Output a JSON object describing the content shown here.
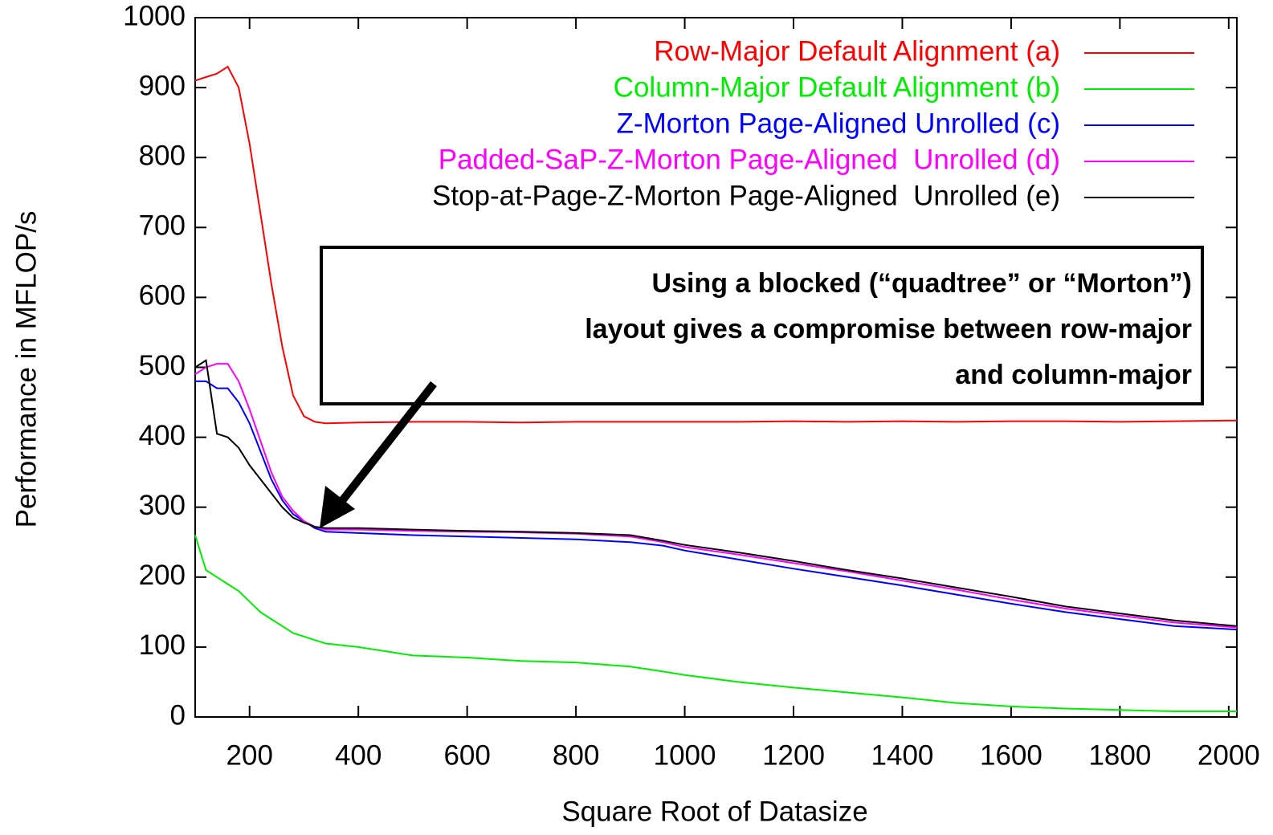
{
  "chart_data": {
    "type": "line",
    "xlabel": "Square Root of Datasize",
    "ylabel": "Performance in MFLOP/s",
    "annotation": [
      "Using a blocked (“quadtree” or “Morton”)",
      "layout gives a compromise between row-major",
      "and column-major"
    ],
    "x": [
      100,
      120,
      140,
      160,
      180,
      200,
      220,
      240,
      260,
      280,
      300,
      320,
      340,
      400,
      500,
      600,
      700,
      800,
      900,
      960,
      1000,
      1100,
      1200,
      1300,
      1400,
      1500,
      1600,
      1700,
      1800,
      1900,
      2015
    ],
    "series": [
      {
        "name": "Row-Major Default Alignment (a)",
        "color": "#ff0000",
        "values": [
          910,
          915,
          920,
          930,
          900,
          820,
          720,
          620,
          530,
          460,
          430,
          422,
          420,
          421,
          422,
          422,
          421,
          422,
          422,
          422,
          422,
          422,
          423,
          422,
          423,
          422,
          423,
          423,
          422,
          423,
          424
        ]
      },
      {
        "name": "Column-Major Default Alignment (b)",
        "color": "#00ee00",
        "values": [
          260,
          210,
          200,
          190,
          180,
          165,
          150,
          140,
          130,
          120,
          115,
          110,
          105,
          100,
          88,
          85,
          80,
          78,
          72,
          65,
          60,
          50,
          42,
          35,
          28,
          20,
          15,
          12,
          10,
          8,
          8
        ]
      },
      {
        "name": "Z-Morton Page-Aligned Unrolled (c)",
        "color": "#0000ff",
        "values": [
          480,
          480,
          470,
          470,
          450,
          420,
          380,
          340,
          310,
          290,
          280,
          270,
          265,
          263,
          260,
          258,
          256,
          254,
          250,
          245,
          238,
          225,
          212,
          200,
          188,
          175,
          162,
          150,
          140,
          130,
          125
        ]
      },
      {
        "name": "Padded-SaP-Z-Morton Page-Aligned  Unrolled (d)",
        "color": "#ff00ff",
        "values": [
          490,
          500,
          505,
          505,
          480,
          440,
          395,
          350,
          315,
          295,
          280,
          272,
          268,
          268,
          266,
          265,
          264,
          262,
          258,
          250,
          243,
          232,
          220,
          208,
          195,
          182,
          168,
          155,
          145,
          135,
          128
        ]
      },
      {
        "name": "Stop-at-Page-Z-Morton Page-Aligned  Unrolled (e)",
        "color": "#000000",
        "values": [
          500,
          510,
          405,
          400,
          385,
          360,
          340,
          320,
          300,
          285,
          278,
          272,
          270,
          270,
          268,
          266,
          265,
          263,
          260,
          252,
          246,
          235,
          223,
          210,
          198,
          185,
          172,
          158,
          148,
          138,
          130
        ]
      }
    ],
    "xlim": [
      100,
      2015
    ],
    "xticks": [
      200,
      400,
      600,
      800,
      1000,
      1200,
      1400,
      1600,
      1800,
      2000
    ],
    "ylim": [
      0,
      1000
    ],
    "yticks": [
      0,
      100,
      200,
      300,
      400,
      500,
      600,
      700,
      800,
      900,
      1000
    ],
    "legend": "upper right"
  }
}
